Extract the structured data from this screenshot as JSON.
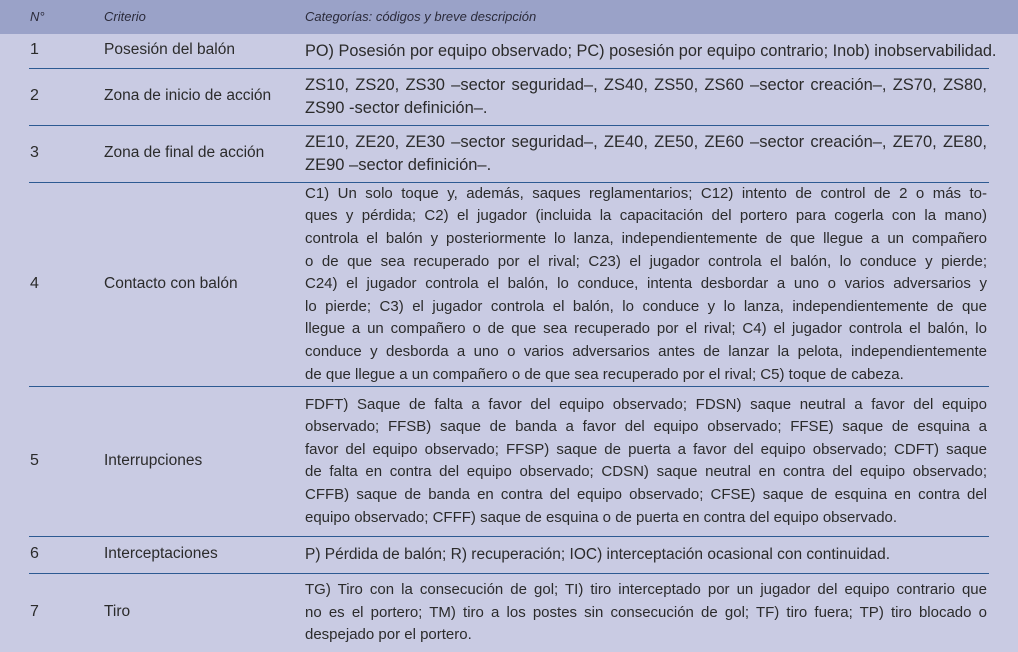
{
  "header": {
    "num": "N°",
    "criterio": "Criterio",
    "categorias": "Categorías: códigos y breve descripción"
  },
  "rows": [
    {
      "num": "1",
      "criterio": "Posesión del balón",
      "lines": [
        "PO) Posesión por equipo observado; PC) posesión por equipo contrario; Inob) inobservabilidad."
      ]
    },
    {
      "num": "2",
      "criterio": "Zona de inicio de acción",
      "lines": [
        "ZS10, ZS20, ZS30 –sector seguridad–, ZS40, ZS50, ZS60 –sector creación–, ZS70, ZS80,",
        "ZS90 -sector definición–."
      ]
    },
    {
      "num": "3",
      "criterio": "Zona de final de acción",
      "lines": [
        "ZE10, ZE20, ZE30 –sector seguridad–, ZE40, ZE50, ZE60 –sector creación–, ZE70, ZE80,",
        "ZE90 –sector definición–."
      ]
    },
    {
      "num": "4",
      "criterio": "Contacto con balón",
      "lines": [
        "C1) Un solo toque y, además, saques reglamentarios; C12) intento de control de 2 o más to-",
        "ques y pérdida; C2) el jugador (incluida la capacitación del portero para cogerla con la mano)",
        "controla el balón y posteriormente lo lanza, independientemente de que llegue a un compañero",
        "o de que sea recuperado por el rival; C23) el jugador controla el balón, lo conduce y pierde;",
        "C24) el jugador controla el balón, lo conduce, intenta desbordar a uno o varios adversarios y",
        "lo pierde; C3) el jugador controla el balón, lo conduce y lo lanza, independientemente de que",
        "llegue a un compañero o de que sea recuperado por el rival; C4) el jugador controla el balón, lo",
        "conduce y desborda a uno o varios adversarios antes de lanzar la pelota, independientemente",
        "de que llegue a un compañero o de que sea recuperado por el rival; C5) toque de cabeza."
      ]
    },
    {
      "num": "5",
      "criterio": "Interrupciones",
      "lines": [
        "FDFT) Saque de falta a favor del equipo observado; FDSN) saque neutral a favor del equipo",
        "observado; FFSB) saque de banda a favor del equipo observado; FFSE) saque de esquina a",
        "favor del equipo observado; FFSP) saque de puerta a favor del equipo observado; CDFT) saque",
        "de falta en contra del equipo observado; CDSN) saque neutral en contra del equipo observado;",
        "CFFB) saque de banda en contra del equipo observado; CFSE) saque de esquina en contra del",
        "equipo observado; CFFF) saque de esquina o de puerta en contra del equipo observado."
      ]
    },
    {
      "num": "6",
      "criterio": "Interceptaciones",
      "lines": [
        "P) Pérdida de balón; R) recuperación; IOC) interceptación ocasional con continuidad."
      ]
    },
    {
      "num": "7",
      "criterio": "Tiro",
      "lines": [
        "TG) Tiro con la consecución de gol; TI) tiro interceptado por un jugador del equipo contrario que",
        "no es el portero; TM) tiro a los postes sin consecución de gol; TF) tiro fuera; TP) tiro blocado o",
        "despejado por el portero."
      ]
    }
  ],
  "colors": {
    "header_bg": "#9aa2c8",
    "body_bg": "#c9cbe3",
    "rule": "#2d5a92"
  }
}
